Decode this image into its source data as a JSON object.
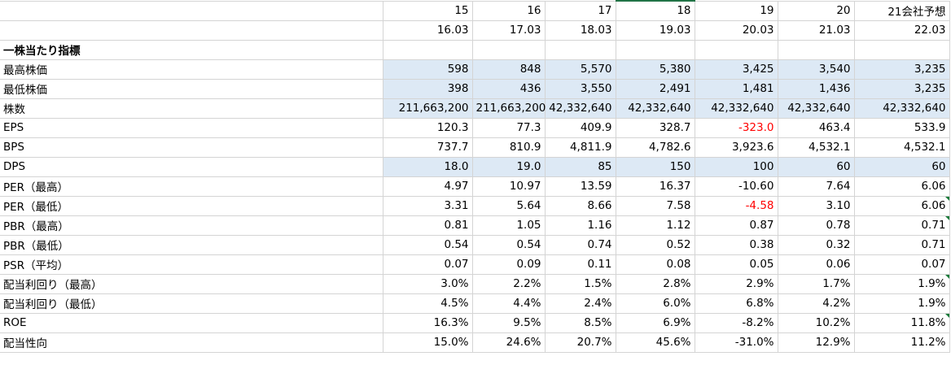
{
  "colors": {
    "shaded": "#dde9f5",
    "negative": "#ff0000",
    "gridline": "#d4d4d4",
    "selection": "#217346"
  },
  "header": {
    "periods": [
      "15",
      "16",
      "17",
      "18",
      "19",
      "20",
      "21会社予想"
    ],
    "dates": [
      "16.03",
      "17.03",
      "18.03",
      "19.03",
      "20.03",
      "21.03",
      "22.03"
    ]
  },
  "section_title": "一株当たり指標",
  "rows": [
    {
      "label": "最高株価",
      "values": [
        "598",
        "848",
        "5,570",
        "5,380",
        "3,425",
        "3,540",
        "3,235"
      ],
      "shaded": true,
      "negative_cols": [],
      "note_last": false
    },
    {
      "label": "最低株価",
      "values": [
        "398",
        "436",
        "3,550",
        "2,491",
        "1,481",
        "1,436",
        "3,235"
      ],
      "shaded": true,
      "negative_cols": [],
      "note_last": false
    },
    {
      "label": "株数",
      "values": [
        "211,663,200",
        "211,663,200",
        "42,332,640",
        "42,332,640",
        "42,332,640",
        "42,332,640",
        "42,332,640"
      ],
      "shaded": true,
      "negative_cols": [],
      "note_last": false
    },
    {
      "label": "EPS",
      "values": [
        "120.3",
        "77.3",
        "409.9",
        "328.7",
        "-323.0",
        "463.4",
        "533.9"
      ],
      "shaded": false,
      "negative_cols": [
        4
      ],
      "note_last": false
    },
    {
      "label": "BPS",
      "values": [
        "737.7",
        "810.9",
        "4,811.9",
        "4,782.6",
        "3,923.6",
        "4,532.1",
        "4,532.1"
      ],
      "shaded": false,
      "negative_cols": [],
      "note_last": false
    },
    {
      "label": "DPS",
      "values": [
        "18.0",
        "19.0",
        "85",
        "150",
        "100",
        "60",
        "60"
      ],
      "shaded": true,
      "negative_cols": [],
      "note_last": false
    },
    {
      "label": "PER（最高）",
      "values": [
        "4.97",
        "10.97",
        "13.59",
        "16.37",
        "-10.60",
        "7.64",
        "6.06"
      ],
      "shaded": false,
      "negative_cols": [],
      "note_last": false
    },
    {
      "label": "PER（最低）",
      "values": [
        "3.31",
        "5.64",
        "8.66",
        "7.58",
        "-4.58",
        "3.10",
        "6.06"
      ],
      "shaded": false,
      "negative_cols": [
        4
      ],
      "note_last": true
    },
    {
      "label": "PBR（最高）",
      "values": [
        "0.81",
        "1.05",
        "1.16",
        "1.12",
        "0.87",
        "0.78",
        "0.71"
      ],
      "shaded": false,
      "negative_cols": [],
      "note_last": true
    },
    {
      "label": "PBR（最低）",
      "values": [
        "0.54",
        "0.54",
        "0.74",
        "0.52",
        "0.38",
        "0.32",
        "0.71"
      ],
      "shaded": false,
      "negative_cols": [],
      "note_last": false
    },
    {
      "label": "PSR（平均）",
      "values": [
        "0.07",
        "0.09",
        "0.11",
        "0.08",
        "0.05",
        "0.06",
        "0.07"
      ],
      "shaded": false,
      "negative_cols": [],
      "note_last": false
    },
    {
      "label": "配当利回り（最高）",
      "values": [
        "3.0%",
        "2.2%",
        "1.5%",
        "2.8%",
        "2.9%",
        "1.7%",
        "1.9%"
      ],
      "shaded": false,
      "negative_cols": [],
      "note_last": true
    },
    {
      "label": "配当利回り（最低）",
      "values": [
        "4.5%",
        "4.4%",
        "2.4%",
        "6.0%",
        "6.8%",
        "4.2%",
        "1.9%"
      ],
      "shaded": false,
      "negative_cols": [],
      "note_last": false
    },
    {
      "label": "ROE",
      "values": [
        "16.3%",
        "9.5%",
        "8.5%",
        "6.9%",
        "-8.2%",
        "10.2%",
        "11.8%"
      ],
      "shaded": false,
      "negative_cols": [],
      "note_last": true
    },
    {
      "label": "配当性向",
      "values": [
        "15.0%",
        "24.6%",
        "20.7%",
        "45.6%",
        "-31.0%",
        "12.9%",
        "11.2%"
      ],
      "shaded": false,
      "negative_cols": [],
      "note_last": false
    }
  ]
}
